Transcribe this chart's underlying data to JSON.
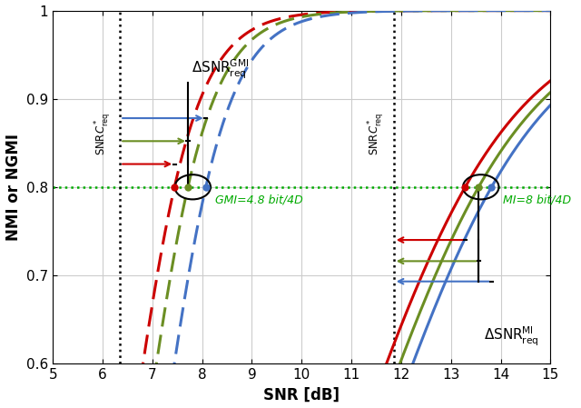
{
  "snr_min": 5,
  "snr_max": 15,
  "ylim": [
    0.6,
    1.0
  ],
  "xlim": [
    5,
    15
  ],
  "xlabel": "SNR [dB]",
  "ylabel": "NMI or NGMI",
  "hline_y": 0.8,
  "vline1_x": 6.35,
  "vline2_x": 11.85,
  "ngmi_params": [
    {
      "mid": 6.55,
      "steep": 1.55,
      "color": "#cc0000"
    },
    {
      "mid": 6.82,
      "steep": 1.55,
      "color": "#6b8e23"
    },
    {
      "mid": 7.18,
      "steep": 1.55,
      "color": "#4472c4"
    }
  ],
  "nmi_params": [
    {
      "mid": 11.05,
      "steep": 0.62,
      "color": "#cc0000"
    },
    {
      "mid": 11.32,
      "steep": 0.62,
      "color": "#6b8e23"
    },
    {
      "mid": 11.58,
      "steep": 0.62,
      "color": "#4472c4"
    }
  ],
  "gmi_label": "GMI=4.8 bit/4D",
  "mi_label": "MI=8 bit/4D",
  "green": "#00aa00",
  "black": "#000000",
  "lw": 2.2,
  "dash_on": 7,
  "dash_off": 3
}
